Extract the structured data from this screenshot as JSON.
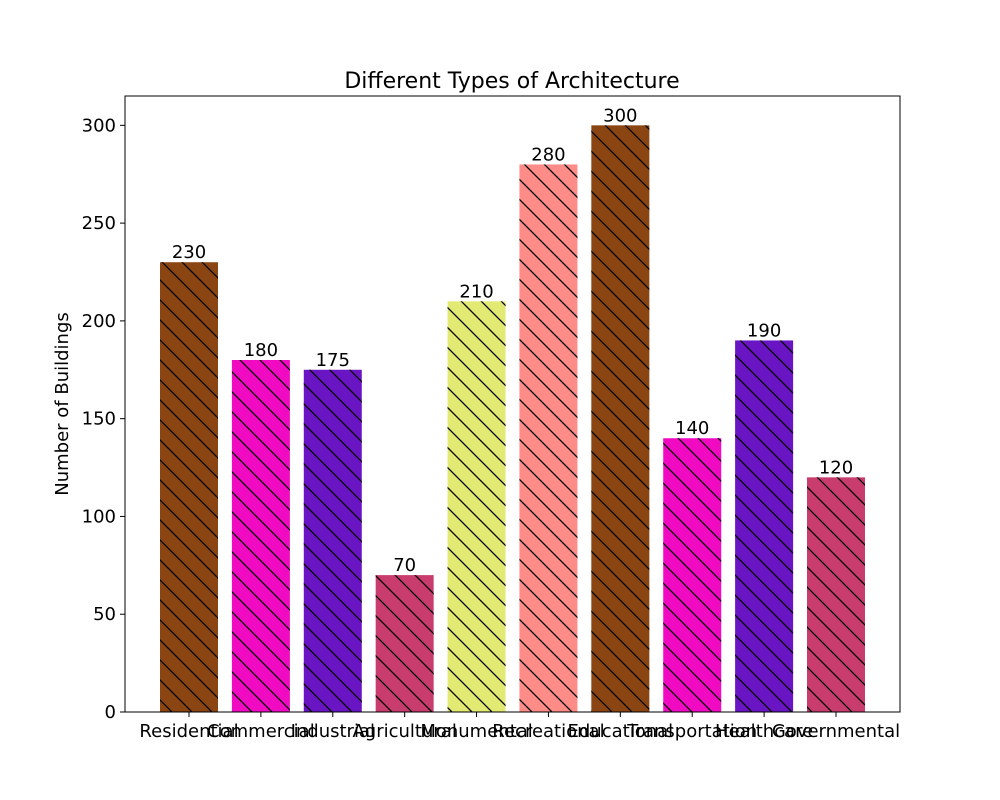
{
  "chart_data": {
    "type": "bar",
    "title": "Different Types of Architecture",
    "xlabel": "",
    "ylabel": "Number of Buildings",
    "categories": [
      "Residential",
      "Commercial",
      "Industrial",
      "Agricultural",
      "Monumental",
      "Recreational",
      "Educational",
      "Transportation",
      "Healthcare",
      "Governmental"
    ],
    "values": [
      230,
      180,
      175,
      70,
      210,
      280,
      300,
      140,
      190,
      120
    ],
    "colors": [
      "#8B4513",
      "#F00BC3",
      "#6A15C3",
      "#C83C6E",
      "#E2EA74",
      "#FF8C87",
      "#8B4513",
      "#F00BC3",
      "#6A15C3",
      "#C83C6E"
    ],
    "hatch": "diagonal",
    "ylim": [
      0,
      315
    ],
    "yticks": [
      0,
      50,
      100,
      150,
      200,
      250,
      300
    ],
    "grid": false,
    "legend": "none"
  }
}
